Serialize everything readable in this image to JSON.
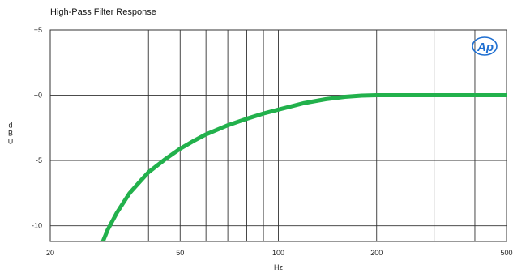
{
  "chart_data": {
    "type": "line",
    "title": "High-Pass Filter Response",
    "xlabel": "Hz",
    "ylabel": "d\nB\nU",
    "x_scale": "log",
    "xlim": [
      20,
      500
    ],
    "ylim": [
      -11.2,
      5
    ],
    "grid": true,
    "x_ticks": [
      20,
      50,
      100,
      200,
      500
    ],
    "x_tick_labels": [
      "20",
      "50",
      "100",
      "200",
      "500"
    ],
    "x_minor_grid": [
      40,
      60,
      70,
      80,
      90,
      300,
      400
    ],
    "y_ticks": [
      5,
      0,
      -5,
      -10
    ],
    "y_tick_labels": [
      "+5",
      "+0",
      "-5",
      "-10"
    ],
    "series": [
      {
        "color": "#22b14c",
        "x": [
          29,
          30,
          32,
          35,
          38,
          40,
          45,
          50,
          55,
          60,
          70,
          80,
          90,
          100,
          120,
          140,
          160,
          180,
          200,
          250,
          300,
          400,
          500
        ],
        "y": [
          -11.2,
          -10.3,
          -9.0,
          -7.5,
          -6.5,
          -5.9,
          -4.9,
          -4.1,
          -3.5,
          -3.0,
          -2.3,
          -1.8,
          -1.4,
          -1.1,
          -0.6,
          -0.3,
          -0.12,
          -0.03,
          0,
          0,
          0,
          0,
          0
        ]
      }
    ]
  },
  "logo": {
    "text": "AP",
    "color": "#1f6fd1"
  }
}
